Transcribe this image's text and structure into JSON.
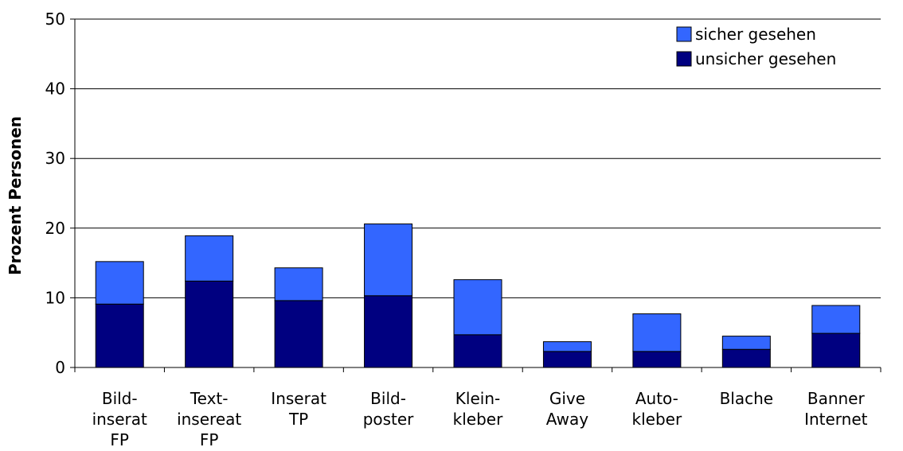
{
  "chart_data": {
    "type": "bar",
    "stacked": true,
    "title": "",
    "xlabel": "",
    "ylabel": "Prozent Personen",
    "ylim": [
      0,
      50
    ],
    "yticks": [
      0,
      10,
      20,
      30,
      40,
      50
    ],
    "grid": true,
    "legend_position": "top-right",
    "categories": [
      [
        "Bild-",
        "inserat",
        "FP"
      ],
      [
        "Text-",
        "insereat",
        "FP"
      ],
      [
        "Inserat",
        "TP"
      ],
      [
        "Bild-",
        "poster"
      ],
      [
        "Klein-",
        "kleber"
      ],
      [
        "Give",
        "Away"
      ],
      [
        "Auto-",
        "kleber"
      ],
      [
        "Blache"
      ],
      [
        "Banner",
        "Internet"
      ]
    ],
    "series": [
      {
        "name": "unsicher gesehen",
        "color": "#000080",
        "values": [
          9.1,
          12.4,
          9.6,
          10.3,
          4.7,
          2.3,
          2.3,
          2.6,
          4.9
        ]
      },
      {
        "name": "sicher gesehen",
        "color": "#3366FF",
        "values": [
          6.1,
          6.5,
          4.7,
          10.3,
          7.9,
          1.4,
          5.4,
          1.9,
          4.0
        ]
      }
    ],
    "legend_order": [
      1,
      0
    ]
  }
}
